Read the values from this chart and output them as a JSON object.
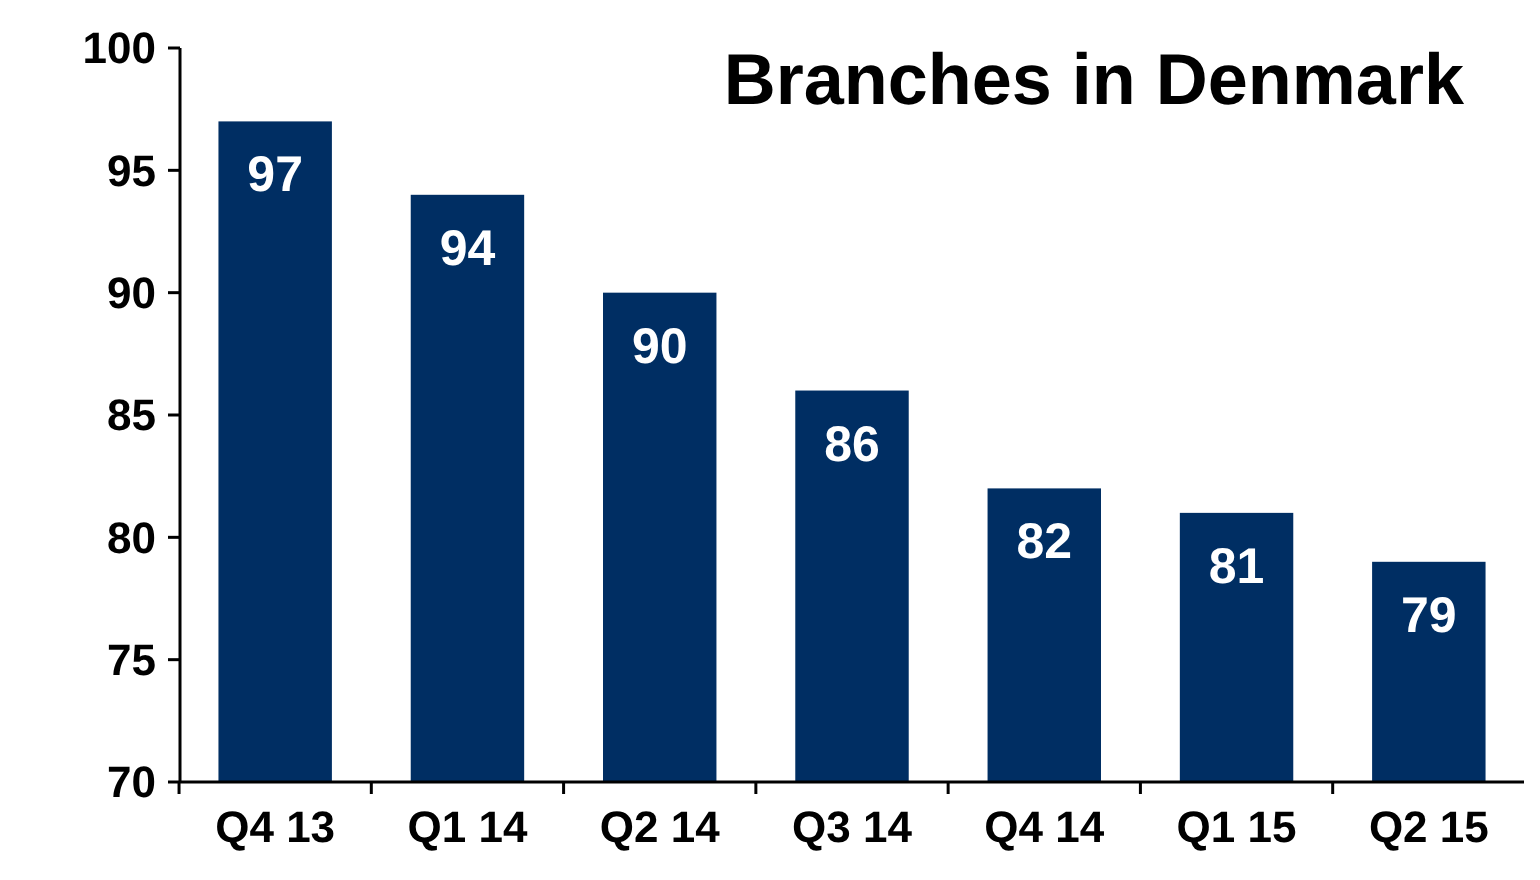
{
  "chart_data": {
    "type": "bar",
    "title": "Branches in Denmark",
    "categories": [
      "Q4 13",
      "Q1 14",
      "Q2 14",
      "Q3 14",
      "Q4 14",
      "Q1 15",
      "Q2 15"
    ],
    "values": [
      97,
      94,
      90,
      86,
      82,
      81,
      79
    ],
    "color": "#002e63",
    "ylim": [
      70,
      100
    ],
    "yticks": [
      70,
      75,
      80,
      85,
      90,
      95,
      100
    ],
    "grid": false,
    "data_labels": true
  }
}
